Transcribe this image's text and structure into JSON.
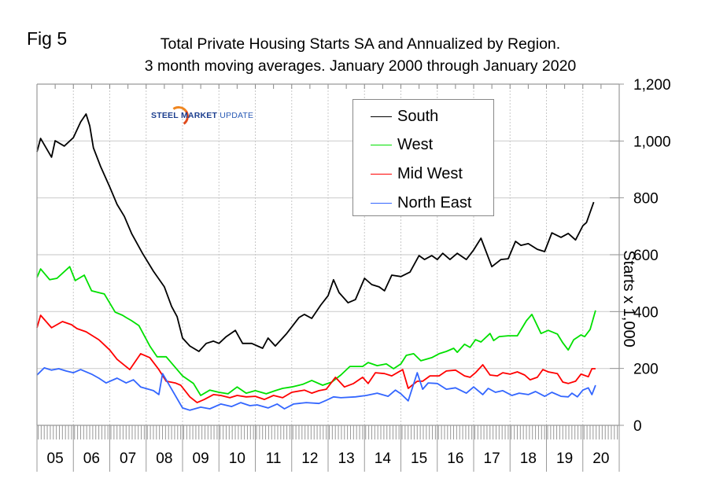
{
  "figure": {
    "label": "Fig 5",
    "title_line1": "Total Private Housing Starts SA and Annualized by Region.",
    "title_line2": "3 month moving averages. January 2000 through January 2020"
  },
  "logo": {
    "word1": "STEEL",
    "word2": "MARKET",
    "word3": "UPDATE"
  },
  "chart_data": {
    "type": "line",
    "title": "Total Private Housing Starts SA and Annualized by Region. 3 month moving averages. January 2000 through January 2020",
    "xlabel": "",
    "ylabel": "Starts x 1,000",
    "xlim": [
      2005,
      2021
    ],
    "ylim": [
      0,
      1200
    ],
    "x_tick_labels": [
      "05",
      "06",
      "07",
      "08",
      "09",
      "10",
      "11",
      "12",
      "13",
      "14",
      "15",
      "16",
      "17",
      "18",
      "19",
      "20"
    ],
    "y_ticks": [
      0,
      200,
      400,
      600,
      800,
      1000,
      1200
    ],
    "y_tick_labels": [
      "0",
      "200",
      "400",
      "600",
      "800",
      "1,000",
      "1,200"
    ],
    "y_axis_side": "right",
    "grid": true,
    "legend_position": "top-center",
    "series": [
      {
        "name": "South",
        "color": "#000000",
        "x": [
          2005.0,
          2005.1,
          2005.4,
          2005.5,
          2005.75,
          2006.0,
          2006.2,
          2006.35,
          2006.45,
          2006.55,
          2006.75,
          2007.0,
          2007.2,
          2007.4,
          2007.6,
          2007.9,
          2008.2,
          2008.5,
          2008.7,
          2008.85,
          2009.0,
          2009.2,
          2009.45,
          2009.65,
          2009.85,
          2010.0,
          2010.2,
          2010.45,
          2010.65,
          2010.9,
          2011.2,
          2011.35,
          2011.55,
          2011.85,
          2012.2,
          2012.35,
          2012.55,
          2012.8,
          2013.0,
          2013.15,
          2013.3,
          2013.55,
          2013.75,
          2014.0,
          2014.2,
          2014.4,
          2014.55,
          2014.75,
          2015.0,
          2015.25,
          2015.5,
          2015.65,
          2015.85,
          2016.0,
          2016.15,
          2016.35,
          2016.55,
          2016.8,
          2017.0,
          2017.2,
          2017.5,
          2017.75,
          2017.95,
          2018.15,
          2018.3,
          2018.5,
          2018.75,
          2018.95,
          2019.15,
          2019.4,
          2019.6,
          2019.8,
          2020.0,
          2020.1,
          2020.3
        ],
        "values": [
          962,
          1009,
          943,
          1001,
          982,
          1012,
          1067,
          1095,
          1053,
          976,
          910,
          838,
          777,
          735,
          675,
          605,
          542,
          487,
          418,
          382,
          307,
          279,
          260,
          288,
          296,
          288,
          312,
          334,
          288,
          288,
          271,
          307,
          279,
          321,
          379,
          390,
          376,
          423,
          456,
          512,
          467,
          431,
          442,
          517,
          495,
          487,
          473,
          528,
          523,
          539,
          597,
          583,
          597,
          583,
          605,
          583,
          605,
          583,
          617,
          658,
          558,
          583,
          586,
          647,
          633,
          639,
          619,
          611,
          677,
          661,
          675,
          652,
          702,
          713,
          785
        ]
      },
      {
        "name": "West",
        "color": "#00e000",
        "x": [
          2005.0,
          2005.1,
          2005.35,
          2005.55,
          2005.9,
          2006.05,
          2006.3,
          2006.5,
          2006.85,
          2007.15,
          2007.35,
          2007.45,
          2007.6,
          2007.8,
          2008.1,
          2008.3,
          2008.55,
          2008.85,
          2009.0,
          2009.3,
          2009.5,
          2009.75,
          2010.0,
          2010.25,
          2010.5,
          2010.75,
          2011.0,
          2011.3,
          2011.55,
          2011.75,
          2012.0,
          2012.3,
          2012.55,
          2012.85,
          2013.1,
          2013.35,
          2013.6,
          2013.95,
          2014.1,
          2014.35,
          2014.6,
          2014.8,
          2015.0,
          2015.15,
          2015.35,
          2015.55,
          2015.85,
          2016.05,
          2016.25,
          2016.45,
          2016.55,
          2016.75,
          2016.9,
          2017.05,
          2017.2,
          2017.45,
          2017.55,
          2017.7,
          2017.95,
          2018.2,
          2018.45,
          2018.6,
          2018.85,
          2019.05,
          2019.3,
          2019.45,
          2019.6,
          2019.75,
          2019.95,
          2020.05,
          2020.2,
          2020.35
        ],
        "values": [
          520,
          550,
          512,
          517,
          558,
          509,
          528,
          473,
          462,
          398,
          387,
          379,
          368,
          351,
          279,
          241,
          241,
          196,
          174,
          147,
          105,
          124,
          116,
          111,
          135,
          113,
          122,
          111,
          122,
          130,
          135,
          144,
          158,
          141,
          152,
          177,
          207,
          207,
          221,
          210,
          216,
          199,
          216,
          246,
          252,
          227,
          238,
          252,
          260,
          271,
          257,
          285,
          274,
          301,
          293,
          323,
          298,
          312,
          315,
          315,
          368,
          390,
          323,
          334,
          321,
          290,
          265,
          301,
          318,
          312,
          337,
          404
        ]
      },
      {
        "name": "Mid West",
        "color": "#ff0000",
        "x": [
          2005.0,
          2005.1,
          2005.25,
          2005.4,
          2005.7,
          2005.95,
          2006.1,
          2006.35,
          2006.7,
          2007.0,
          2007.2,
          2007.55,
          2007.85,
          2008.1,
          2008.35,
          2008.55,
          2008.8,
          2008.95,
          2009.2,
          2009.4,
          2009.6,
          2009.85,
          2010.05,
          2010.3,
          2010.5,
          2010.75,
          2011.0,
          2011.25,
          2011.5,
          2011.75,
          2012.0,
          2012.35,
          2012.55,
          2012.75,
          2012.95,
          2013.2,
          2013.45,
          2013.7,
          2013.95,
          2014.1,
          2014.3,
          2014.55,
          2014.75,
          2015.05,
          2015.2,
          2015.45,
          2015.6,
          2015.8,
          2016.05,
          2016.25,
          2016.5,
          2016.75,
          2016.9,
          2017.05,
          2017.25,
          2017.45,
          2017.65,
          2017.8,
          2018.0,
          2018.2,
          2018.4,
          2018.55,
          2018.75,
          2018.9,
          2019.05,
          2019.3,
          2019.45,
          2019.6,
          2019.8,
          2019.95,
          2020.15,
          2020.25,
          2020.35
        ],
        "values": [
          343,
          387,
          365,
          343,
          365,
          354,
          340,
          329,
          301,
          265,
          232,
          196,
          252,
          238,
          196,
          155,
          149,
          141,
          100,
          80,
          91,
          108,
          105,
          97,
          105,
          100,
          102,
          91,
          105,
          97,
          116,
          124,
          113,
          122,
          127,
          169,
          135,
          147,
          169,
          147,
          185,
          182,
          174,
          196,
          130,
          155,
          155,
          174,
          174,
          191,
          194,
          174,
          169,
          185,
          213,
          177,
          174,
          185,
          180,
          188,
          177,
          160,
          169,
          196,
          188,
          182,
          152,
          147,
          155,
          180,
          171,
          199,
          199
        ]
      },
      {
        "name": "North East",
        "color": "#3366ff",
        "x": [
          2005.0,
          2005.2,
          2005.4,
          2005.6,
          2005.8,
          2006.0,
          2006.2,
          2006.5,
          2006.7,
          2006.9,
          2007.2,
          2007.45,
          2007.65,
          2007.85,
          2008.2,
          2008.35,
          2008.45,
          2008.6,
          2009.0,
          2009.2,
          2009.5,
          2009.75,
          2010.05,
          2010.35,
          2010.6,
          2010.85,
          2011.05,
          2011.35,
          2011.6,
          2011.8,
          2012.05,
          2012.4,
          2012.75,
          2012.95,
          2013.15,
          2013.35,
          2013.75,
          2014.05,
          2014.35,
          2014.65,
          2014.85,
          2015.0,
          2015.2,
          2015.45,
          2015.6,
          2015.75,
          2016.0,
          2016.25,
          2016.5,
          2016.8,
          2017.0,
          2017.25,
          2017.4,
          2017.6,
          2017.8,
          2018.05,
          2018.25,
          2018.5,
          2018.7,
          2018.95,
          2019.15,
          2019.4,
          2019.6,
          2019.7,
          2019.85,
          2020.0,
          2020.15,
          2020.25,
          2020.35
        ],
        "values": [
          177,
          202,
          194,
          199,
          191,
          185,
          196,
          180,
          166,
          149,
          166,
          149,
          160,
          135,
          122,
          108,
          182,
          149,
          61,
          53,
          64,
          58,
          75,
          66,
          80,
          69,
          72,
          61,
          75,
          58,
          75,
          80,
          77,
          88,
          100,
          97,
          100,
          105,
          113,
          102,
          124,
          111,
          86,
          185,
          127,
          149,
          147,
          127,
          132,
          113,
          135,
          108,
          130,
          116,
          122,
          105,
          113,
          108,
          119,
          102,
          116,
          102,
          100,
          113,
          100,
          124,
          132,
          108,
          141
        ]
      }
    ]
  }
}
